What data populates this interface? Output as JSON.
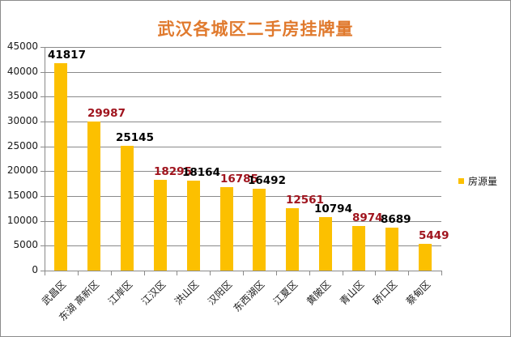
{
  "chart_data": {
    "type": "bar",
    "title": "武汉各城区二手房挂牌量",
    "xlabel": "",
    "ylabel": "",
    "ylim": [
      0,
      45000
    ],
    "yticks": [
      0,
      5000,
      10000,
      15000,
      20000,
      25000,
      30000,
      35000,
      40000,
      45000
    ],
    "grid": true,
    "legend_position": "right",
    "categories": [
      "武昌区",
      "东湖高新区",
      "江岸区",
      "江汉区",
      "洪山区",
      "汉阳区",
      "东西湖区",
      "江夏区",
      "黄陂区",
      "青山区",
      "硚口区",
      "蔡甸区"
    ],
    "series": [
      {
        "name": "房源量",
        "color": "#fcc000",
        "values": [
          41817,
          29987,
          25145,
          18295,
          18164,
          16785,
          16492,
          12561,
          10794,
          8974,
          8689,
          5449
        ]
      }
    ],
    "label_colors": [
      "#000000",
      "#a0141e",
      "#000000",
      "#a0141e",
      "#000000",
      "#a0141e",
      "#000000",
      "#a0141e",
      "#000000",
      "#a0141e",
      "#000000",
      "#a0141e"
    ],
    "x_label_display": [
      "武昌区",
      "东湖 高新区",
      "江岸区",
      "江汉区",
      "洪山区",
      "汉阳区",
      "东西湖区",
      "江夏区",
      "黄陂区",
      "青山区",
      "硚口区",
      "蔡甸区"
    ]
  }
}
